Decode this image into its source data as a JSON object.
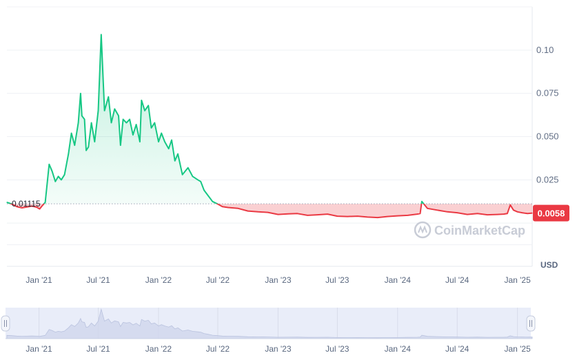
{
  "chart_data": {
    "type": "area",
    "currency_label": "USD",
    "watermark": "CoinMarketCap",
    "baseline_label": "0.01115",
    "baseline_value": 0.01115,
    "current_price_label": "0.0058",
    "current_price_value": 0.0058,
    "y_ticks": [
      "0.025",
      "0.050",
      "0.075",
      "0.10"
    ],
    "y_tick_values": [
      0.025,
      0.05,
      0.075,
      0.1
    ],
    "ylim": [
      -0.025,
      0.125
    ],
    "x_ticks": [
      "Jan '21",
      "Jul '21",
      "Jan '22",
      "Jul '22",
      "Jan '23",
      "Jul '23",
      "Jan '24",
      "Jul '24",
      "Jan '25"
    ],
    "x_tick_dates": [
      "2021-01-01",
      "2021-07-01",
      "2022-01-01",
      "2022-07-01",
      "2023-01-01",
      "2023-07-01",
      "2024-01-01",
      "2024-07-01",
      "2025-01-01"
    ],
    "xlim": [
      "2020-09-25",
      "2025-02-15"
    ],
    "grid": true,
    "colors": {
      "up": "#16c784",
      "down": "#ea3943",
      "baseline": "#9aa3b5",
      "navigator": "#e9edf9"
    },
    "series": [
      {
        "x": [
          "2020-09-25",
          "2020-10-10",
          "2020-10-25",
          "2020-11-10",
          "2020-11-25",
          "2020-12-10",
          "2020-12-25",
          "2021-01-03",
          "2021-01-10",
          "2021-01-20",
          "2021-02-01",
          "2021-02-10",
          "2021-02-20",
          "2021-03-01",
          "2021-03-10",
          "2021-03-20",
          "2021-04-01",
          "2021-04-10",
          "2021-04-20",
          "2021-05-01",
          "2021-05-08",
          "2021-05-12",
          "2021-05-20",
          "2021-05-25",
          "2021-06-01",
          "2021-06-10",
          "2021-06-20",
          "2021-07-01",
          "2021-07-10",
          "2021-07-20",
          "2021-08-01",
          "2021-08-10",
          "2021-08-20",
          "2021-09-01",
          "2021-09-07",
          "2021-09-15",
          "2021-09-25",
          "2021-10-05",
          "2021-10-15",
          "2021-10-25",
          "2021-11-05",
          "2021-11-10",
          "2021-11-20",
          "2021-12-01",
          "2021-12-10",
          "2021-12-20",
          "2022-01-01",
          "2022-01-10",
          "2022-01-20",
          "2022-02-01",
          "2022-02-10",
          "2022-02-20",
          "2022-03-01",
          "2022-03-15",
          "2022-04-01",
          "2022-04-15",
          "2022-05-01",
          "2022-05-10",
          "2022-05-20",
          "2022-06-01",
          "2022-06-15",
          "2022-07-01",
          "2022-07-15",
          "2022-08-01",
          "2022-09-01",
          "2022-10-01",
          "2022-11-01",
          "2022-12-01",
          "2023-01-01",
          "2023-02-01",
          "2023-03-01",
          "2023-04-01",
          "2023-05-01",
          "2023-06-01",
          "2023-07-01",
          "2023-08-01",
          "2023-09-01",
          "2023-10-01",
          "2023-11-01",
          "2023-12-01",
          "2024-01-01",
          "2024-02-01",
          "2024-03-01",
          "2024-03-10",
          "2024-03-15",
          "2024-04-01",
          "2024-05-01",
          "2024-06-01",
          "2024-07-01",
          "2024-08-01",
          "2024-09-01",
          "2024-10-01",
          "2024-11-01",
          "2024-11-20",
          "2024-12-01",
          "2024-12-10",
          "2024-12-20",
          "2025-01-01",
          "2025-01-15",
          "2025-02-01",
          "2025-02-15"
        ],
        "y": [
          0.012,
          0.011,
          0.0095,
          0.0088,
          0.0093,
          0.0098,
          0.0092,
          0.0082,
          0.0098,
          0.012,
          0.034,
          0.03,
          0.024,
          0.027,
          0.025,
          0.028,
          0.04,
          0.052,
          0.045,
          0.058,
          0.075,
          0.062,
          0.06,
          0.042,
          0.044,
          0.058,
          0.047,
          0.065,
          0.109,
          0.065,
          0.073,
          0.058,
          0.066,
          0.062,
          0.045,
          0.06,
          0.058,
          0.06,
          0.051,
          0.057,
          0.047,
          0.071,
          0.065,
          0.068,
          0.055,
          0.058,
          0.047,
          0.052,
          0.047,
          0.043,
          0.048,
          0.036,
          0.04,
          0.028,
          0.032,
          0.027,
          0.025,
          0.024,
          0.019,
          0.016,
          0.0125,
          0.011,
          0.0095,
          0.009,
          0.0085,
          0.007,
          0.0065,
          0.0062,
          0.005,
          0.0053,
          0.0055,
          0.0045,
          0.0048,
          0.0052,
          0.004,
          0.0038,
          0.004,
          0.0035,
          0.0032,
          0.0038,
          0.0042,
          0.0045,
          0.0052,
          0.0055,
          0.0125,
          0.0085,
          0.0075,
          0.0065,
          0.006,
          0.005,
          0.0055,
          0.0048,
          0.005,
          0.0052,
          0.0055,
          0.0105,
          0.0075,
          0.0065,
          0.006,
          0.0055,
          0.0058
        ]
      }
    ]
  }
}
